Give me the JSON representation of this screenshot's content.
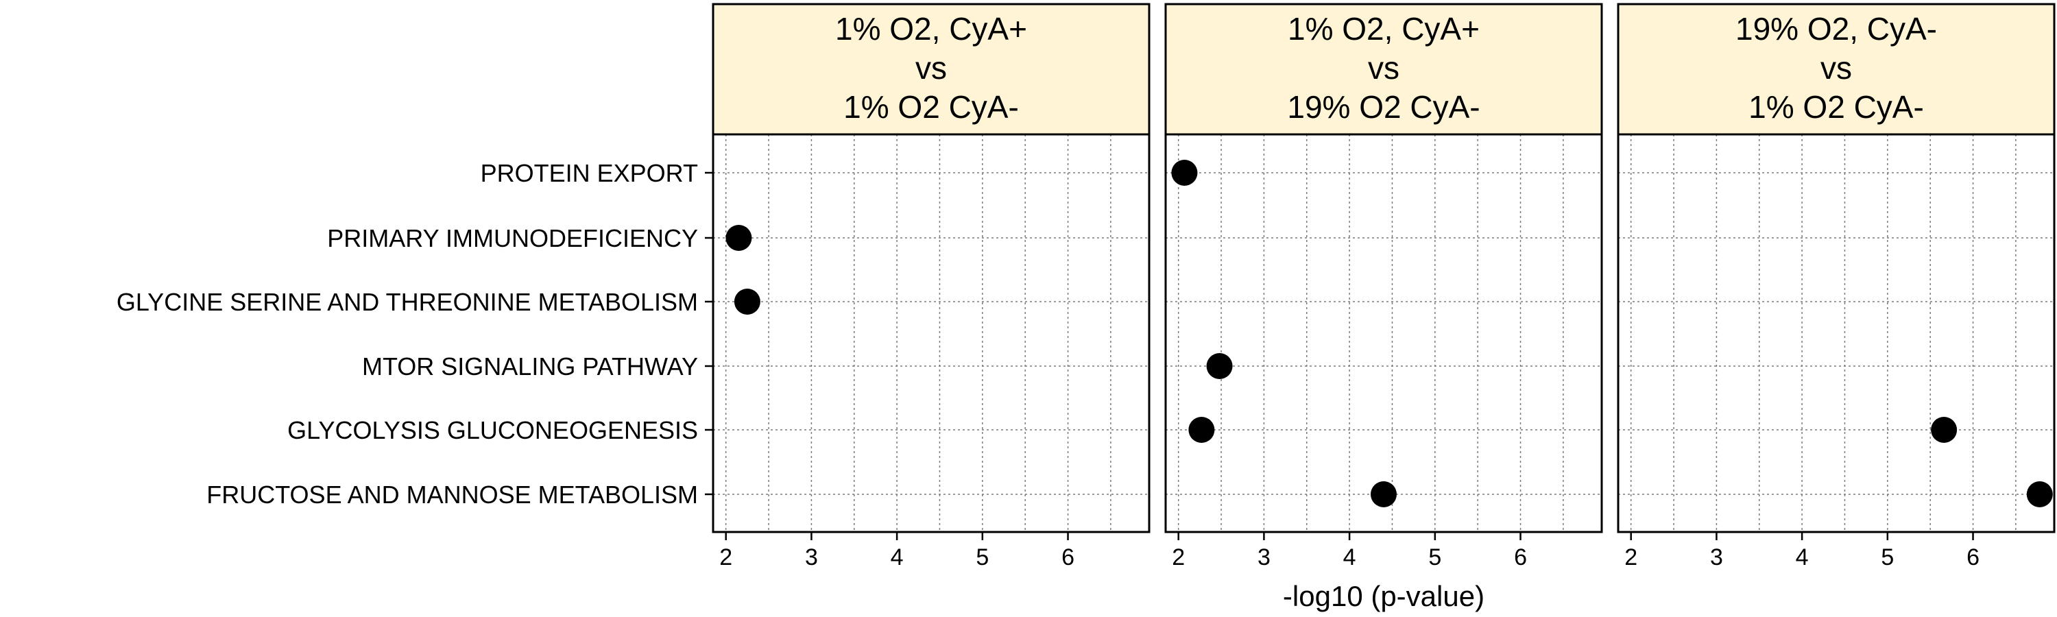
{
  "chart_data": {
    "type": "scatter",
    "title": "",
    "xlabel": "-log10 (p-value)",
    "ylabel": "",
    "xlim": [
      1.85,
      6.95
    ],
    "x_ticks": [
      2,
      3,
      4,
      5,
      6
    ],
    "x_tick_labels": [
      "2",
      "3",
      "4",
      "5",
      "6"
    ],
    "grid": true,
    "legend": "none",
    "categories": [
      "PROTEIN EXPORT",
      "PRIMARY IMMUNODEFICIENCY",
      "GLYCINE SERINE AND THREONINE METABOLISM",
      "MTOR SIGNALING PATHWAY",
      "GLYCOLYSIS GLUCONEOGENESIS",
      "FRUCTOSE AND MANNOSE METABOLISM"
    ],
    "panels": [
      {
        "strip": [
          "1% O2, CyA+",
          "vs",
          "1% O2 CyA-"
        ],
        "points": [
          {
            "category": "PRIMARY IMMUNODEFICIENCY",
            "x": 2.15
          },
          {
            "category": "GLYCINE SERINE AND THREONINE METABOLISM",
            "x": 2.25
          }
        ]
      },
      {
        "strip": [
          "1% O2, CyA+",
          "vs",
          "19% O2 CyA-"
        ],
        "points": [
          {
            "category": "PROTEIN EXPORT",
            "x": 2.07
          },
          {
            "category": "MTOR SIGNALING PATHWAY",
            "x": 2.48
          },
          {
            "category": "GLYCOLYSIS GLUCONEOGENESIS",
            "x": 2.27
          },
          {
            "category": "FRUCTOSE AND MANNOSE METABOLISM",
            "x": 4.4
          }
        ]
      },
      {
        "strip": [
          "19% O2, CyA-",
          "vs",
          "1% O2 CyA-"
        ],
        "points": [
          {
            "category": "GLYCOLYSIS GLUCONEOGENESIS",
            "x": 5.66
          },
          {
            "category": "FRUCTOSE AND MANNOSE METABOLISM",
            "x": 6.78
          }
        ]
      }
    ],
    "colors": {
      "strip_fill": "#FFF5D6",
      "point": "#000000",
      "grid": "#7a7a7a",
      "border": "#000000"
    }
  }
}
